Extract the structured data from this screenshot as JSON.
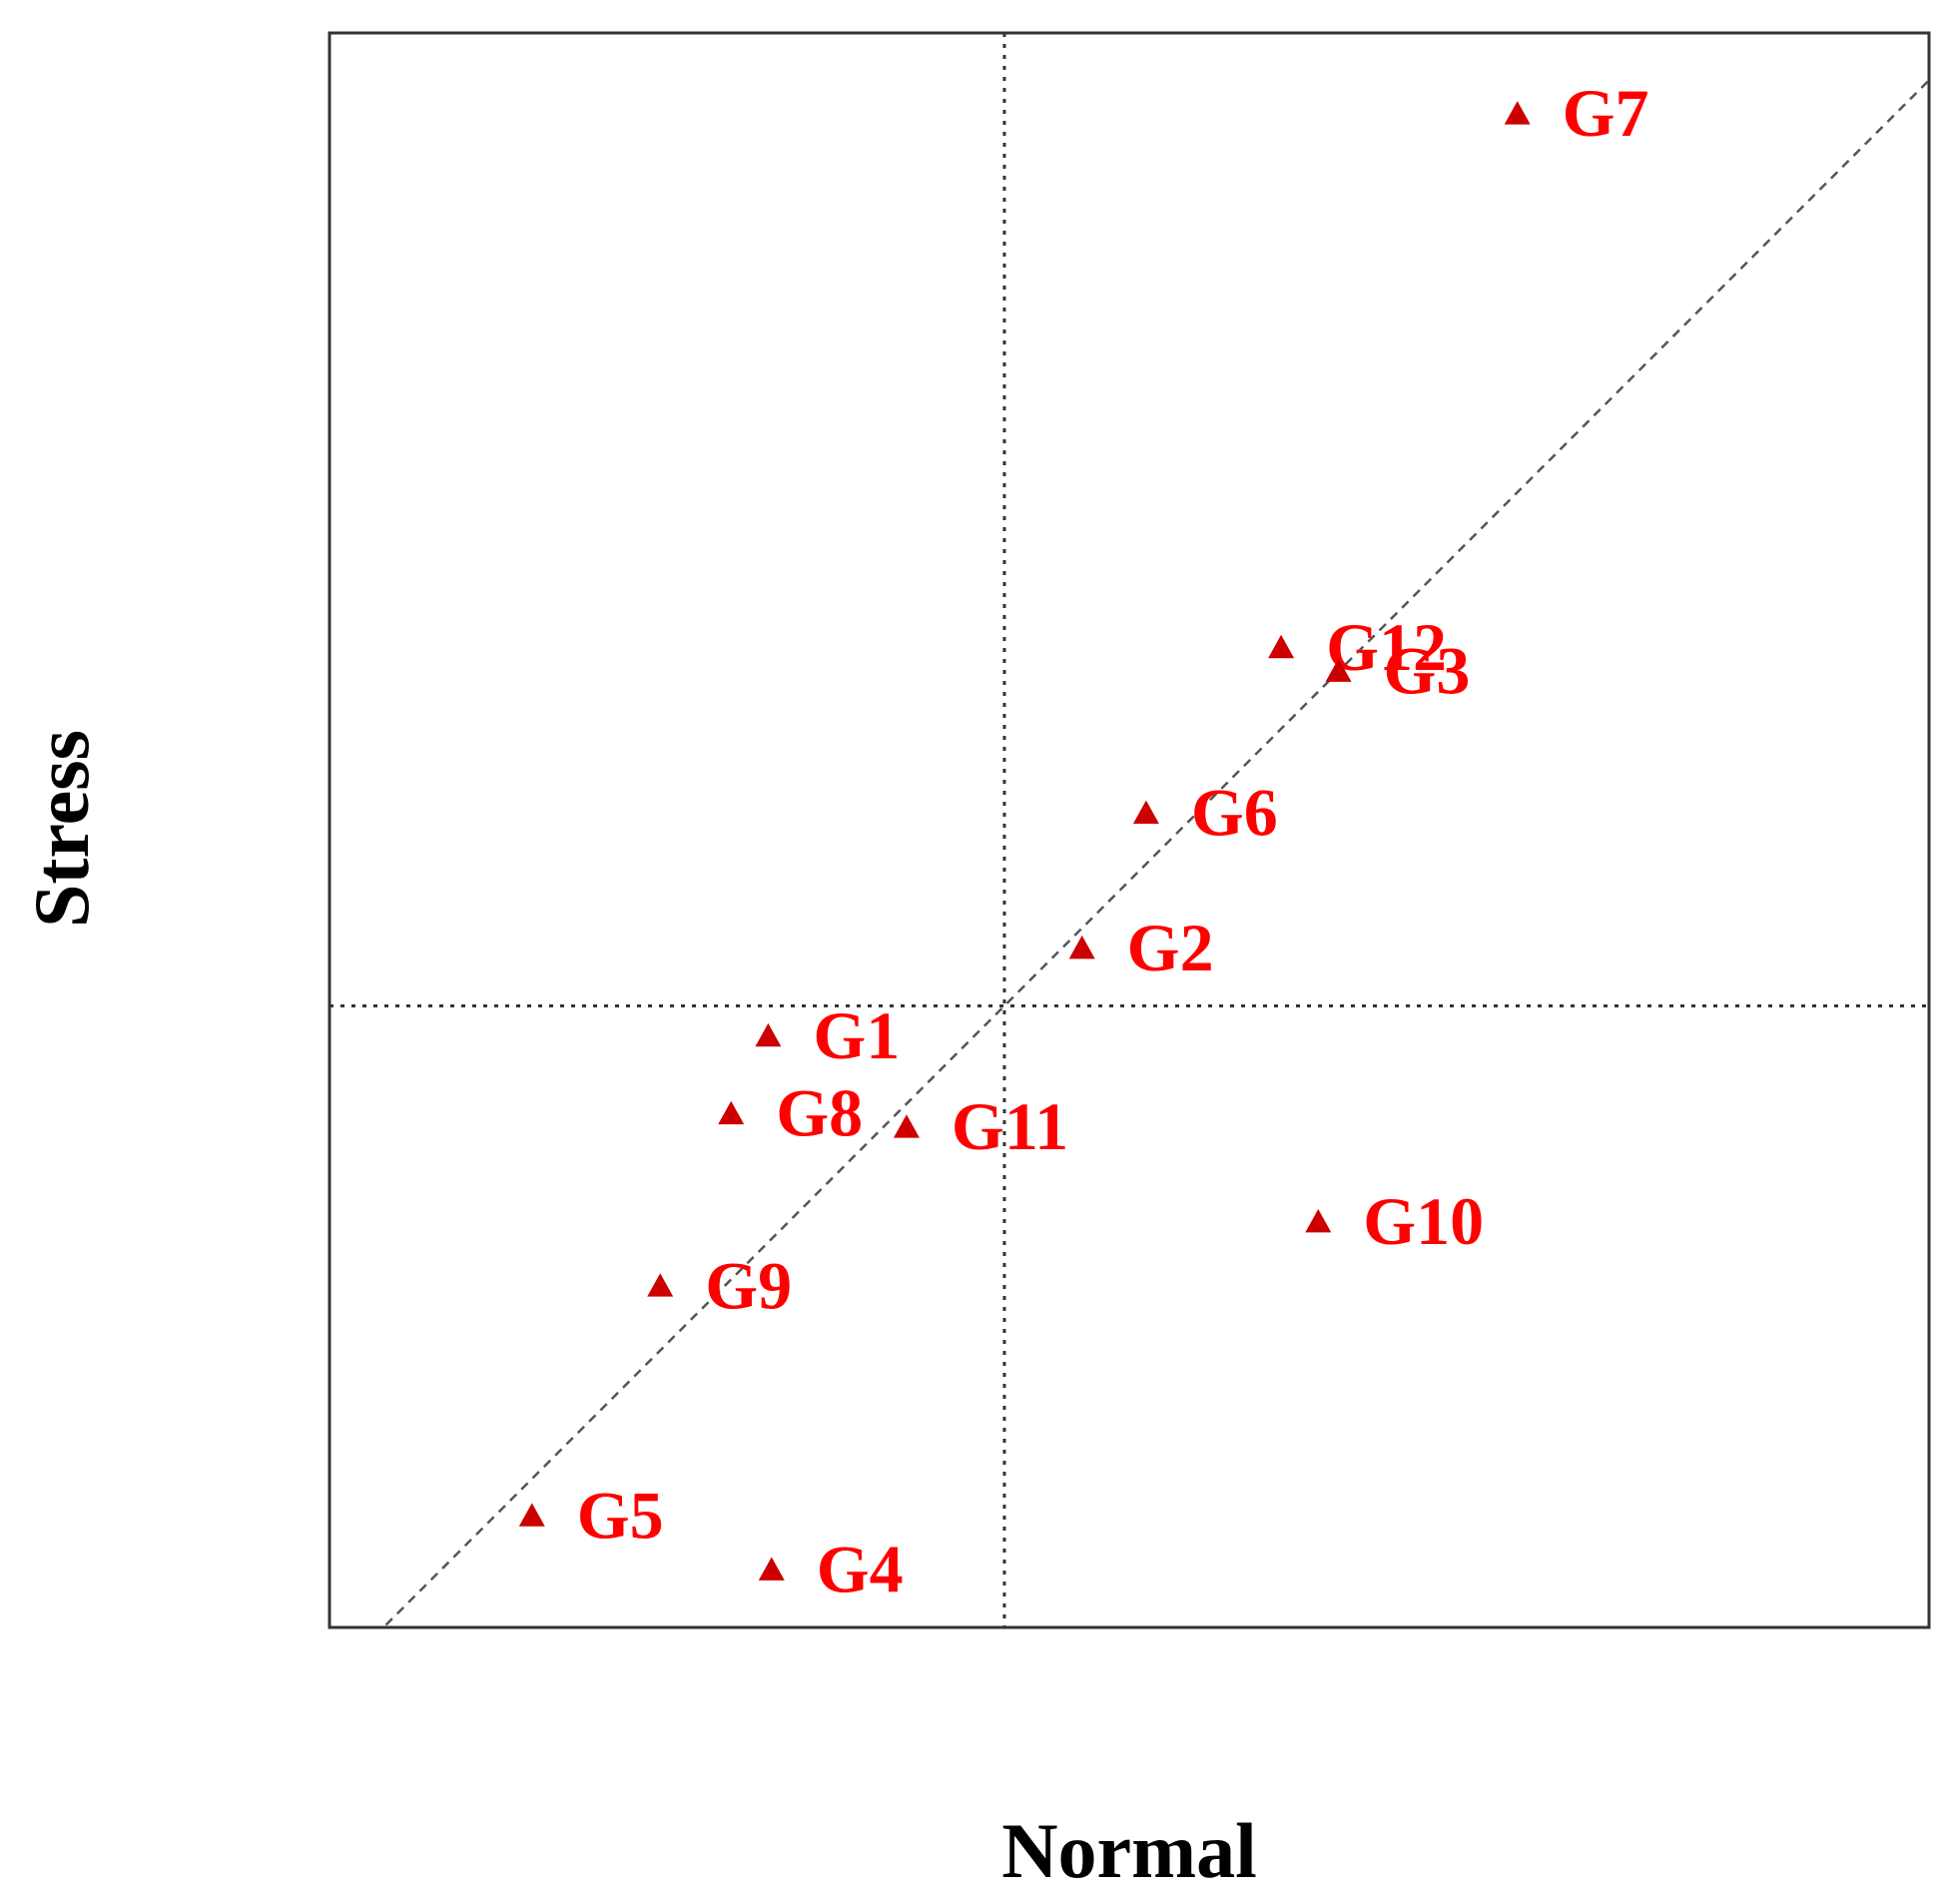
{
  "chart_data": {
    "type": "scatter",
    "xlabel": "Normal",
    "ylabel": "Stress",
    "grid": false,
    "axis_ticks": false,
    "xlim": [
      -1,
      1.37
    ],
    "ylim": [
      -0.92,
      1.44
    ],
    "reference_lines": {
      "vertical_x": 0,
      "horizontal_y": 0,
      "diagonal_slope": 1,
      "style": "dotted"
    },
    "marker": "triangle",
    "marker_color": "#cc0000",
    "label_color": "#ff0000",
    "points": [
      {
        "label": "G7",
        "x": 0.76,
        "y": 1.32
      },
      {
        "label": "G12",
        "x": 0.41,
        "y": 0.53
      },
      {
        "label": "G3",
        "x": 0.495,
        "y": 0.495
      },
      {
        "label": "G6",
        "x": 0.21,
        "y": 0.285
      },
      {
        "label": "G2",
        "x": 0.115,
        "y": 0.085
      },
      {
        "label": "G1",
        "x": -0.35,
        "y": -0.045
      },
      {
        "label": "G8",
        "x": -0.405,
        "y": -0.16
      },
      {
        "label": "G11",
        "x": -0.145,
        "y": -0.18
      },
      {
        "label": "G10",
        "x": 0.465,
        "y": -0.32
      },
      {
        "label": "G9",
        "x": -0.51,
        "y": -0.415
      },
      {
        "label": "G5",
        "x": -0.7,
        "y": -0.755
      },
      {
        "label": "G4",
        "x": -0.345,
        "y": -0.835
      }
    ]
  }
}
